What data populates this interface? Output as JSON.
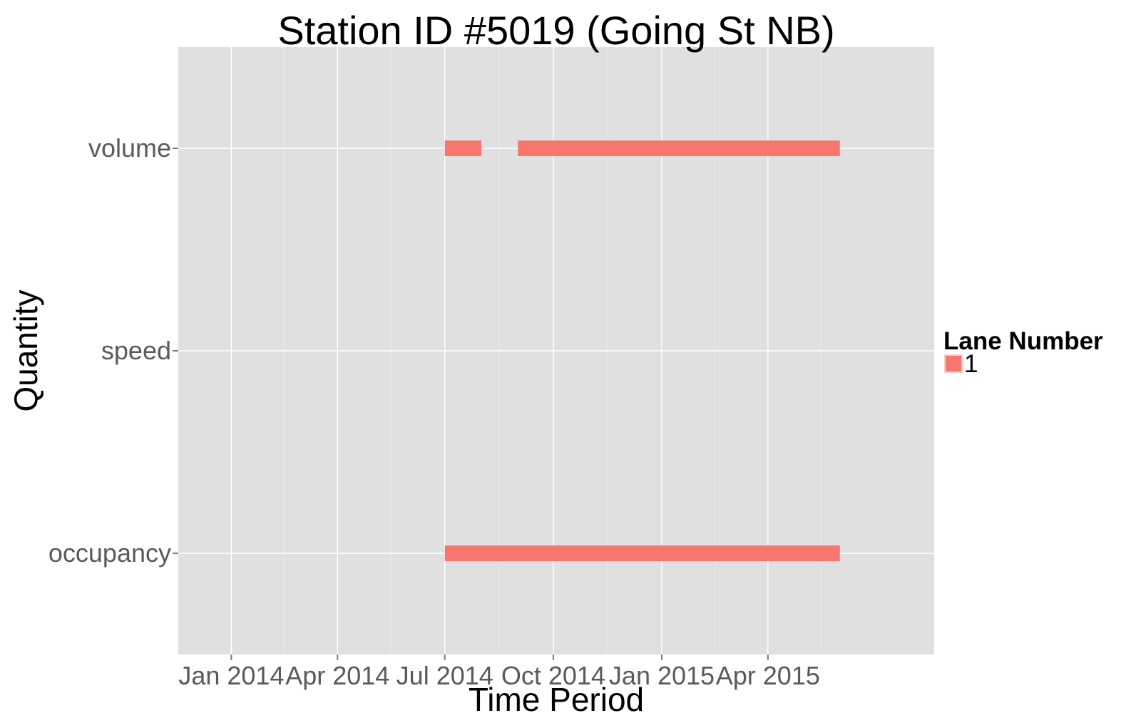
{
  "chart_data": {
    "type": "bar",
    "title": "Station ID #5019 (Going St NB)",
    "xlabel": "Time Period",
    "ylabel": "Quantity",
    "x_axis_type": "date",
    "x_range": [
      "2013-11-17",
      "2015-08-20"
    ],
    "x_ticks": [
      {
        "date": "2014-01-01",
        "label": "Jan 2014"
      },
      {
        "date": "2014-04-01",
        "label": "Apr 2014"
      },
      {
        "date": "2014-07-01",
        "label": "Jul 2014"
      },
      {
        "date": "2014-10-01",
        "label": "Oct 2014"
      },
      {
        "date": "2015-01-01",
        "label": "Jan 2015"
      },
      {
        "date": "2015-04-01",
        "label": "Apr 2015"
      }
    ],
    "x_minor_grid": [
      "2014-02-15",
      "2014-05-16",
      "2014-08-16",
      "2014-11-16",
      "2015-02-15",
      "2015-05-16"
    ],
    "categories": [
      "occupancy",
      "speed",
      "volume"
    ],
    "grid": true,
    "background": "#e0e0e0",
    "legend": {
      "title": "Lane Number",
      "placement": "right",
      "entries": [
        {
          "label": "1",
          "color": "#f8766d"
        }
      ]
    },
    "series": [
      {
        "name": "1",
        "color": "#f8766d",
        "segments": [
          {
            "category": "volume",
            "start": "2014-07-01",
            "end": "2014-08-01"
          },
          {
            "category": "volume",
            "start": "2014-09-01",
            "end": "2015-06-01"
          },
          {
            "category": "occupancy",
            "start": "2014-07-01",
            "end": "2015-06-01"
          }
        ]
      }
    ]
  }
}
